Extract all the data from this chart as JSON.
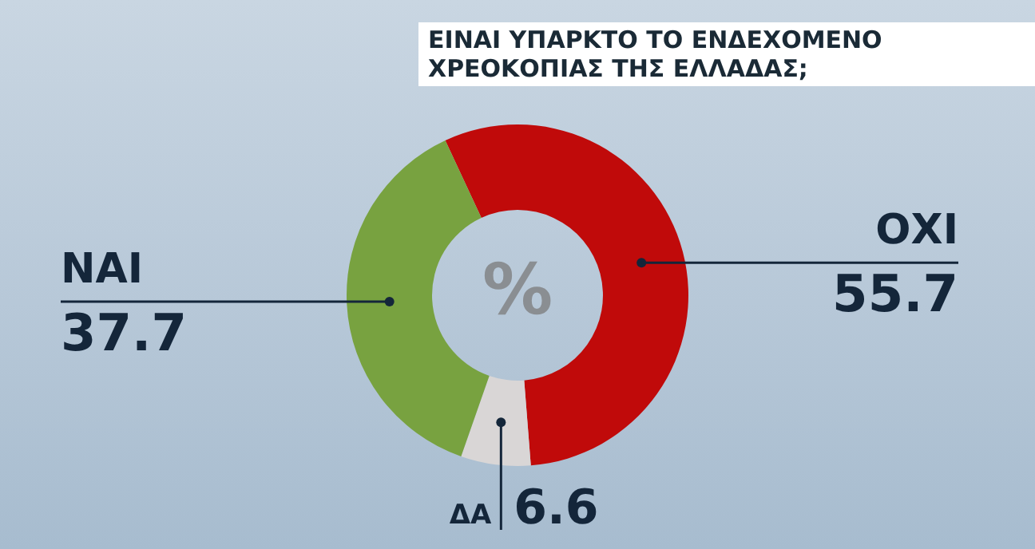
{
  "chart_data": {
    "type": "donut",
    "title": "ΕΙΝΑΙ ΥΠΑΡΚΤΟ ΤΟ ΕΝΔΕΧΟΜΕΝΟ ΧΡΕΟΚΟΠΙΑΣ ΤΗΣ ΕΛΛΑΔΑΣ;",
    "categories": [
      "ΟΧΙ",
      "ΔΑ",
      "ΝΑΙ"
    ],
    "values": [
      55.7,
      6.6,
      37.7
    ],
    "colors": [
      "#c00a0a",
      "#d9d6d6",
      "#78a240"
    ],
    "annotations": [
      "%"
    ],
    "data_labels": true,
    "legend": false
  }
}
